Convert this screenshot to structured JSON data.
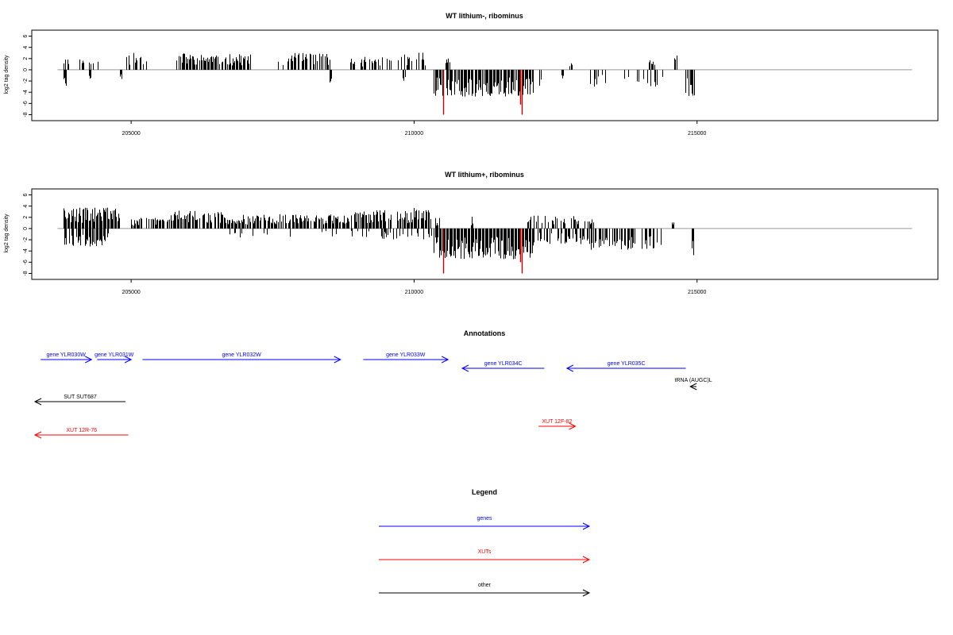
{
  "chart_data": [
    {
      "type": "bar",
      "title": "WT lithium-, ribominus",
      "xlabel": "",
      "ylabel": "log2 tag density",
      "xlim": [
        203300,
        219200
      ],
      "ylim": [
        -8.5,
        6.5
      ],
      "xticks": [
        205000,
        210000,
        215000
      ],
      "yticks": [
        6,
        4,
        2,
        0,
        -2,
        -4,
        -6,
        -8
      ],
      "baseline": {
        "from": 203700,
        "to": 218800
      },
      "seed": 11,
      "pos_segments": [
        [
          203800,
          204450,
          0.25,
          2.2
        ],
        [
          204900,
          205300,
          0.35,
          3.0
        ],
        [
          205800,
          206000,
          0.8,
          3.0
        ],
        [
          206000,
          207100,
          0.85,
          2.8
        ],
        [
          207600,
          208500,
          0.65,
          3.0
        ],
        [
          208800,
          209600,
          0.55,
          2.3
        ],
        [
          209700,
          210200,
          0.6,
          3.1
        ],
        [
          210550,
          210650,
          0.5,
          2.2
        ],
        [
          212750,
          212800,
          1.0,
          1.5
        ],
        [
          214150,
          214250,
          0.7,
          2.8
        ],
        [
          214600,
          214650,
          1.0,
          2.8
        ]
      ],
      "neg_segments": [
        [
          203800,
          203860,
          1.0,
          3.0
        ],
        [
          204250,
          204300,
          1.0,
          2.0
        ],
        [
          204800,
          204850,
          1.0,
          2.0
        ],
        [
          208500,
          208550,
          1.0,
          3.0
        ],
        [
          209800,
          209850,
          1.0,
          2.0
        ],
        [
          210350,
          212100,
          0.95,
          4.8
        ],
        [
          212200,
          212300,
          0.5,
          3.0
        ],
        [
          212600,
          212650,
          1.0,
          1.6
        ],
        [
          213000,
          213500,
          0.35,
          3.0
        ],
        [
          213600,
          214400,
          0.35,
          3.2
        ],
        [
          214800,
          214950,
          0.8,
          5.0
        ]
      ],
      "highlight_neg": [
        [
          210520,
          8.0
        ],
        [
          211900,
          8.0
        ],
        [
          211880,
          6.2
        ]
      ]
    },
    {
      "type": "bar",
      "title": "WT lithium+, ribominus",
      "xlabel": "",
      "ylabel": "log2 tag density",
      "xlim": [
        203300,
        219200
      ],
      "ylim": [
        -8.5,
        6.5
      ],
      "xticks": [
        205000,
        210000,
        215000
      ],
      "yticks": [
        6,
        4,
        2,
        0,
        -2,
        -4,
        -6,
        -8
      ],
      "baseline": {
        "from": 203700,
        "to": 218800
      },
      "seed": 29,
      "pos_segments": [
        [
          203800,
          204800,
          1.0,
          3.8
        ],
        [
          205000,
          205700,
          0.7,
          2.0
        ],
        [
          205700,
          206600,
          0.9,
          3.2
        ],
        [
          206600,
          208900,
          0.9,
          2.6
        ],
        [
          208900,
          209600,
          0.9,
          3.4
        ],
        [
          209700,
          210300,
          0.8,
          3.8
        ],
        [
          210350,
          210450,
          0.6,
          2.0
        ],
        [
          211000,
          211050,
          1.0,
          2.2
        ],
        [
          212000,
          212900,
          0.45,
          2.4
        ],
        [
          213000,
          213200,
          0.5,
          1.8
        ],
        [
          214550,
          214600,
          1.0,
          1.5
        ]
      ],
      "neg_segments": [
        [
          203800,
          204600,
          0.8,
          3.2
        ],
        [
          206600,
          209300,
          0.12,
          1.6
        ],
        [
          209400,
          210300,
          0.3,
          2.2
        ],
        [
          210350,
          212100,
          1.0,
          5.5
        ],
        [
          212100,
          213100,
          0.5,
          2.8
        ],
        [
          213100,
          214400,
          0.6,
          3.8
        ],
        [
          214900,
          214950,
          1.0,
          6.8
        ]
      ],
      "highlight_neg": [
        [
          210520,
          8.0
        ],
        [
          211900,
          8.0
        ],
        [
          211870,
          6.0
        ]
      ]
    }
  ],
  "annotations": {
    "title": "Annotations",
    "items": [
      {
        "label": "gene YLR030W",
        "dir": "right",
        "from": 203400,
        "to": 204300,
        "row": 0,
        "color": "#0000ff"
      },
      {
        "label": "gene YLR031W",
        "dir": "right",
        "from": 204400,
        "to": 205000,
        "row": 0,
        "color": "#0000ff"
      },
      {
        "label": "gene YLR032W",
        "dir": "right",
        "from": 205200,
        "to": 208700,
        "row": 0,
        "color": "#0000ff"
      },
      {
        "label": "gene YLR033W",
        "dir": "right",
        "from": 209100,
        "to": 210600,
        "row": 0,
        "color": "#0000ff"
      },
      {
        "label": "gene YLR034C",
        "dir": "left",
        "from": 210850,
        "to": 212300,
        "row": 1,
        "color": "#0000ff"
      },
      {
        "label": "gene YLR035C",
        "dir": "left",
        "from": 212700,
        "to": 214800,
        "row": 1,
        "color": "#0000ff"
      },
      {
        "label": "tRNA (AUGC)L",
        "dir": "left",
        "from": 214880,
        "to": 214990,
        "row": 2,
        "color": "#000000"
      },
      {
        "label": "SUT SUT687",
        "dir": "left",
        "from": 203300,
        "to": 204900,
        "row": 3,
        "color": "#000000"
      },
      {
        "label": "XUT 12F-82",
        "dir": "right",
        "from": 212200,
        "to": 212850,
        "row": 4,
        "color": "#ff0000"
      },
      {
        "label": "XUT 12R-76",
        "dir": "left",
        "from": 203300,
        "to": 204950,
        "row": 5,
        "color": "#ff0000"
      }
    ]
  },
  "legend": {
    "title": "Legend",
    "items": [
      {
        "label": "genes",
        "color": "#0000ff"
      },
      {
        "label": "XUTs",
        "color": "#ff0000"
      },
      {
        "label": "other",
        "color": "#000000"
      }
    ]
  }
}
